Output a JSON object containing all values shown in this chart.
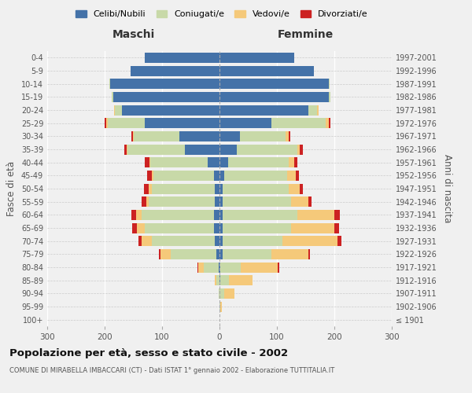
{
  "age_groups": [
    "100+",
    "95-99",
    "90-94",
    "85-89",
    "80-84",
    "75-79",
    "70-74",
    "65-69",
    "60-64",
    "55-59",
    "50-54",
    "45-49",
    "40-44",
    "35-39",
    "30-34",
    "25-29",
    "20-24",
    "15-19",
    "10-14",
    "5-9",
    "0-4"
  ],
  "birth_years": [
    "≤ 1901",
    "1902-1906",
    "1907-1911",
    "1912-1916",
    "1917-1921",
    "1922-1926",
    "1927-1931",
    "1932-1936",
    "1937-1941",
    "1942-1946",
    "1947-1951",
    "1952-1956",
    "1957-1961",
    "1962-1966",
    "1967-1971",
    "1972-1976",
    "1977-1981",
    "1982-1986",
    "1987-1991",
    "1992-1996",
    "1997-2001"
  ],
  "maschi": {
    "celibi": [
      0,
      0,
      0,
      0,
      2,
      5,
      8,
      10,
      10,
      8,
      8,
      10,
      20,
      60,
      70,
      130,
      170,
      185,
      190,
      155,
      130
    ],
    "coniugati": [
      0,
      0,
      2,
      5,
      25,
      80,
      110,
      120,
      125,
      115,
      110,
      105,
      100,
      100,
      80,
      65,
      12,
      3,
      2,
      0,
      0
    ],
    "vedovi": [
      0,
      0,
      0,
      3,
      10,
      18,
      18,
      14,
      10,
      5,
      5,
      3,
      2,
      1,
      1,
      2,
      2,
      0,
      0,
      0,
      0
    ],
    "divorziati": [
      0,
      0,
      0,
      0,
      1,
      3,
      5,
      8,
      8,
      8,
      8,
      8,
      8,
      5,
      3,
      3,
      0,
      0,
      0,
      0,
      0
    ]
  },
  "femmine": {
    "nubili": [
      0,
      0,
      0,
      2,
      2,
      5,
      5,
      5,
      5,
      5,
      5,
      8,
      15,
      30,
      35,
      90,
      155,
      190,
      190,
      165,
      130
    ],
    "coniugate": [
      0,
      2,
      8,
      15,
      35,
      85,
      105,
      120,
      130,
      120,
      115,
      110,
      105,
      105,
      80,
      95,
      15,
      3,
      2,
      0,
      0
    ],
    "vedove": [
      0,
      2,
      18,
      40,
      65,
      65,
      95,
      75,
      65,
      30,
      20,
      15,
      10,
      5,
      5,
      5,
      3,
      0,
      0,
      0,
      0
    ],
    "divorziate": [
      0,
      0,
      0,
      0,
      2,
      3,
      8,
      8,
      10,
      5,
      5,
      5,
      5,
      5,
      3,
      3,
      0,
      0,
      0,
      0,
      0
    ]
  },
  "colors": {
    "celibi_nubili": "#4472a8",
    "coniugati": "#c8d9a8",
    "vedovi": "#f5c97a",
    "divorziati": "#cc2222"
  },
  "title": "Popolazione per età, sesso e stato civile - 2002",
  "subtitle": "COMUNE DI MIRABELLA IMBACCARI (CT) - Dati ISTAT 1° gennaio 2002 - Elaborazione TUTTITALIA.IT",
  "ylabel_left": "Fasce di età",
  "ylabel_right": "Anni di nascita",
  "xlim": 300,
  "legend_labels": [
    "Celibi/Nubili",
    "Coniugati/e",
    "Vedovi/e",
    "Divorziati/e"
  ],
  "maschi_label": "Maschi",
  "femmine_label": "Femmine",
  "bg_color": "#f0f0f0"
}
